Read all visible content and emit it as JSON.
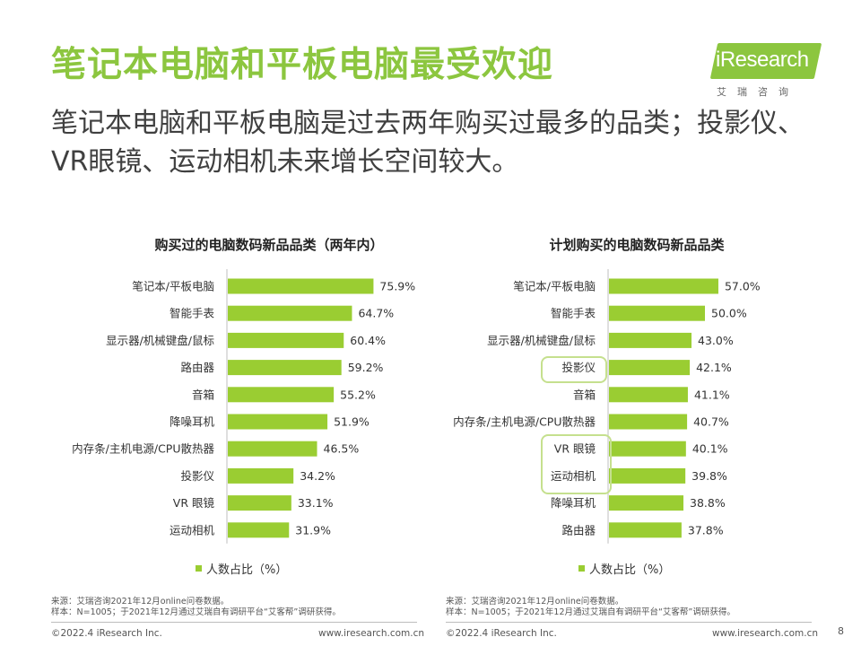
{
  "header": {
    "title": "笔记本电脑和平板电脑最受欢迎",
    "subtitle": "笔记本电脑和平板电脑是过去两年购买过最多的品类；投影仪、VR眼镜、运动相机未来增长空间较大。"
  },
  "logo": {
    "name": "iResearch",
    "sub": "艾瑞咨询",
    "color": "#8cc63f"
  },
  "colors": {
    "accent": "#8cc63f",
    "bar": "#9acd32",
    "highlight": "#c5e08e"
  },
  "chart_data": [
    {
      "type": "bar",
      "orientation": "horizontal",
      "title": "购买过的电脑数码新品品类（两年内）",
      "categories": [
        "笔记本/平板电脑",
        "智能手表",
        "显示器/机械键盘/鼠标",
        "路由器",
        "音箱",
        "降噪耳机",
        "内存条/主机电源/CPU散热器",
        "投影仪",
        "VR 眼镜",
        "运动相机"
      ],
      "values": [
        75.9,
        64.7,
        60.4,
        59.2,
        55.2,
        51.9,
        46.5,
        34.2,
        33.1,
        31.9
      ],
      "value_labels": [
        "75.9%",
        "64.7%",
        "60.4%",
        "59.2%",
        "55.2%",
        "51.9%",
        "46.5%",
        "34.2%",
        "33.1%",
        "31.9%"
      ],
      "legend": "人数占比（%）",
      "xlim": [
        0,
        100
      ]
    },
    {
      "type": "bar",
      "orientation": "horizontal",
      "title": "计划购买的电脑数码新品品类",
      "categories": [
        "笔记本/平板电脑",
        "智能手表",
        "显示器/机械键盘/鼠标",
        "投影仪",
        "音箱",
        "内存条/主机电源/CPU散热器",
        "VR 眼镜",
        "运动相机",
        "降噪耳机",
        "路由器"
      ],
      "values": [
        57.0,
        50.0,
        43.0,
        42.1,
        41.1,
        40.7,
        40.1,
        39.8,
        38.8,
        37.8
      ],
      "value_labels": [
        "57.0%",
        "50.0%",
        "43.0%",
        "42.1%",
        "41.1%",
        "40.7%",
        "40.1%",
        "39.8%",
        "38.8%",
        "37.8%"
      ],
      "legend": "人数占比（%）",
      "highlighted": [
        "投影仪",
        "VR 眼镜",
        "运动相机"
      ],
      "xlim": [
        0,
        100
      ]
    }
  ],
  "footer_left": {
    "source": "来源：艾瑞咨询2021年12月online问卷数据。",
    "sample": "样本：N=1005；于2021年12月通过艾瑞自有调研平台“艾客帮”调研获得。",
    "copyright": "©2022.4 iResearch Inc.",
    "url": "www.iresearch.com.cn"
  },
  "footer_right": {
    "source": "来源：艾瑞咨询2021年12月online问卷数据。",
    "sample": "样本：N=1005；于2021年12月通过艾瑞自有调研平台“艾客帮”调研获得。",
    "copyright": "©2022.4 iResearch Inc.",
    "url": "www.iresearch.com.cn"
  },
  "page_number": "8"
}
